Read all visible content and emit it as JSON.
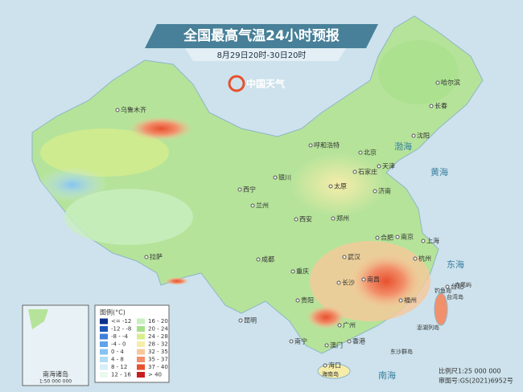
{
  "header": {
    "title": "全国最高气温24小时预报",
    "subtitle": "8月29日20时-30日20时",
    "logo": "中国天气"
  },
  "cities": [
    "乌鲁木齐",
    "哈尔滨",
    "长春",
    "沈阳",
    "呼和浩特",
    "北京",
    "天津",
    "石家庄",
    "银川",
    "太原",
    "济南",
    "西宁",
    "兰州",
    "郑州",
    "西安",
    "合肥",
    "南京",
    "上海",
    "拉萨",
    "成都",
    "武汉",
    "杭州",
    "重庆",
    "长沙",
    "南昌",
    "福州",
    "贵阳",
    "昆明",
    "台北",
    "广州",
    "南宁",
    "香港",
    "澳门",
    "海口"
  ],
  "islands": [
    "台湾岛",
    "钓鱼岛",
    "赤尾屿",
    "澎湖列岛",
    "东沙群岛",
    "海南岛"
  ],
  "seas": [
    "渤海",
    "黄海",
    "东海",
    "南海"
  ],
  "legend": {
    "title": "图例(°C)",
    "items": [
      {
        "label": "<= -12",
        "color": "#0a2f8a"
      },
      {
        "label": "-12 - -8",
        "color": "#1b55b8"
      },
      {
        "label": "-8 - -4",
        "color": "#3f7fd8"
      },
      {
        "label": "-4 - 0",
        "color": "#5fa3ea"
      },
      {
        "label": "0 - 4",
        "color": "#85c3f2"
      },
      {
        "label": "4 - 8",
        "color": "#b0dcf6"
      },
      {
        "label": "8 - 12",
        "color": "#d6eef8"
      },
      {
        "label": "12 - 16",
        "color": "#eaf8ee"
      },
      {
        "label": "16 - 20",
        "color": "#c9efc0"
      },
      {
        "label": "20 - 24",
        "color": "#a6e08a"
      },
      {
        "label": "24 - 28",
        "color": "#d8ee8c"
      },
      {
        "label": "28 - 32",
        "color": "#f6edaa"
      },
      {
        "label": "32 - 35",
        "color": "#f7c89a"
      },
      {
        "label": "35 - 37",
        "color": "#f2906b"
      },
      {
        "label": "37 - 40",
        "color": "#e8502e"
      },
      {
        "label": "> 40",
        "color": "#c81e1e"
      }
    ]
  },
  "inset": {
    "label": "南海诸岛",
    "scale": "1:50 000 000"
  },
  "footer": {
    "scale": "比例尺1:25 000 000",
    "approval": "审图号:GS(2021)6952号"
  }
}
